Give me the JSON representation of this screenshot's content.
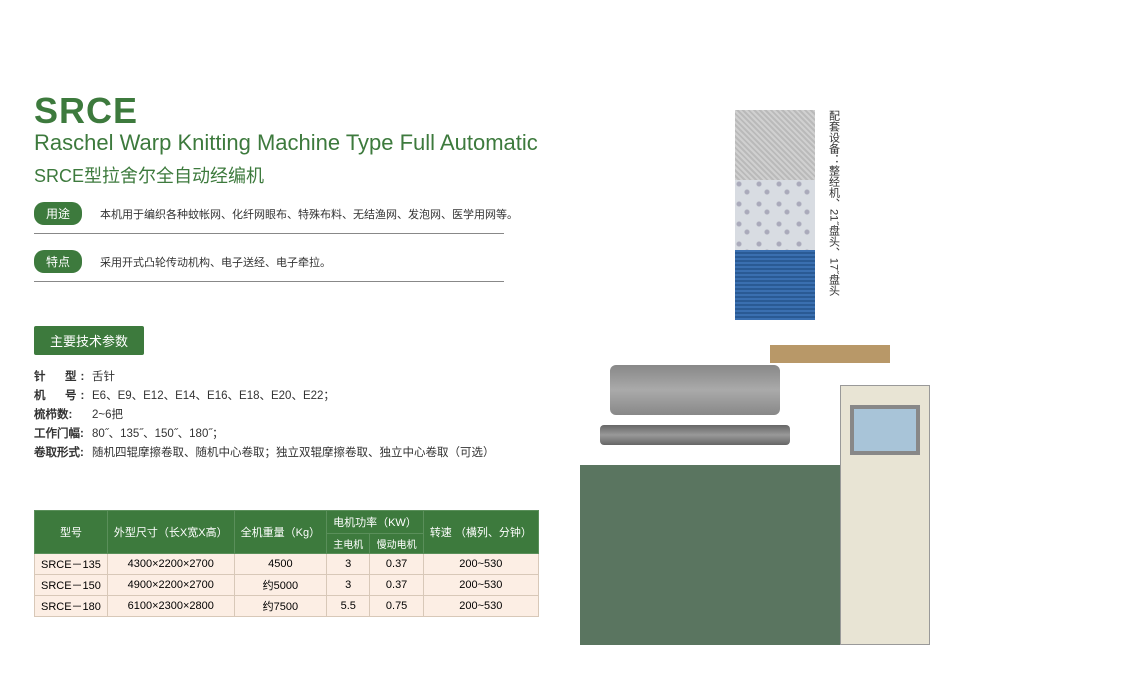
{
  "header": {
    "code": "SRCE",
    "en": "Raschel Warp Knitting Machine Type Full Automatic",
    "cn": "SRCE型拉舍尔全自动经编机"
  },
  "usage": {
    "label": "用途",
    "text": "本机用于编织各种蚊帐网、化纤网眼布、特殊布料、无结渔网、发泡网、医学用网等。"
  },
  "feature": {
    "label": "特点",
    "text": "采用开式凸轮传动机构、电子送经、电子牵拉。"
  },
  "params_header": "主要技术参数",
  "params": {
    "needle_type": {
      "label": "针　型:",
      "value": "舌针"
    },
    "gauge": {
      "label": "机　号:",
      "value": "E6、E9、E12、E14、E16、E18、E20、E22；"
    },
    "bars": {
      "label": "梳栉数:",
      "value": "2~6把"
    },
    "width": {
      "label": "工作门幅:",
      "value": "80˝、135˝、150˝、180˝；"
    },
    "takeup": {
      "label": "卷取形式:",
      "value": "随机四辊摩擦卷取、随机中心卷取；独立双辊摩擦卷取、独立中心卷取（可选）"
    }
  },
  "table": {
    "headers": {
      "model": "型号",
      "size": "外型尺寸（长X宽X高）",
      "weight": "全机重量（Kg）",
      "motor": "电机功率（KW）",
      "motor_main": "主电机",
      "motor_slow": "慢动电机",
      "speed": "转速\n（横列、分钟）"
    },
    "rows": [
      {
        "model": "SRCE－135",
        "size": "4300×2200×2700",
        "weight": "4500",
        "m1": "3",
        "m2": "0.37",
        "speed": "200~530"
      },
      {
        "model": "SRCE－150",
        "size": "4900×2200×2700",
        "weight": "约5000",
        "m1": "3",
        "m2": "0.37",
        "speed": "200~530"
      },
      {
        "model": "SRCE－180",
        "size": "6100×2300×2800",
        "weight": "约7500",
        "m1": "5.5",
        "m2": "0.75",
        "speed": "200~530"
      }
    ],
    "colors": {
      "header_bg": "#3d7a3d",
      "row_bg": "#fceee4"
    }
  },
  "side_label": "配套设备：整经机、21˝盘头、17˝盘头",
  "colors": {
    "brand": "#3d7a3d"
  }
}
